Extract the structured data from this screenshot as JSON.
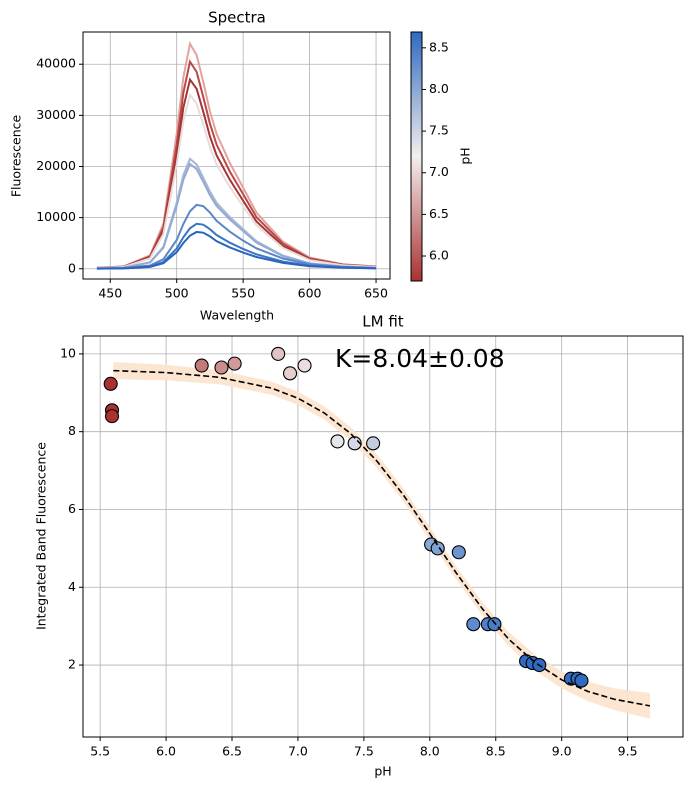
{
  "chart_data": [
    {
      "type": "line",
      "title": "Spectra",
      "xlabel": "Wavelength",
      "ylabel": "Fluorescence",
      "x": [
        440,
        460,
        480,
        490,
        500,
        505,
        510,
        515,
        520,
        525,
        530,
        540,
        550,
        560,
        580,
        600,
        625,
        650
      ],
      "series": [
        {
          "color": "#e3a39c",
          "values": [
            220,
            440,
            2640,
            8800,
            26400,
            37400,
            44000,
            41800,
            36520,
            30800,
            26400,
            20680,
            15840,
            11000,
            5280,
            2200,
            880,
            440
          ]
        },
        {
          "color": "#b94848",
          "values": [
            200,
            410,
            2430,
            8100,
            24300,
            34400,
            40500,
            38500,
            33600,
            28400,
            24300,
            19000,
            14600,
            10100,
            4900,
            2000,
            810,
            410
          ]
        },
        {
          "color": "#a83232",
          "values": [
            190,
            370,
            2220,
            7400,
            22200,
            31500,
            37000,
            35200,
            30700,
            25900,
            22200,
            17400,
            13300,
            9250,
            4440,
            1850,
            740,
            370
          ]
        },
        {
          "color": "#e6dcdc",
          "values": [
            170,
            340,
            2040,
            6800,
            20400,
            28900,
            34000,
            32300,
            28200,
            23800,
            20400,
            16000,
            12200,
            8500,
            4080,
            1700,
            680,
            340
          ]
        },
        {
          "color": "#a6b6d3",
          "values": [
            110,
            220,
            1290,
            4300,
            12900,
            18300,
            21500,
            20400,
            17800,
            15100,
            12900,
            10100,
            7740,
            5380,
            2580,
            1080,
            430,
            220
          ]
        },
        {
          "color": "#93acd6",
          "values": [
            100,
            210,
            1230,
            4100,
            12300,
            17400,
            20500,
            19500,
            17000,
            14400,
            12300,
            9640,
            7380,
            5130,
            2460,
            1030,
            410,
            210
          ]
        },
        {
          "color": "#5a87c6",
          "values": [
            60,
            130,
            630,
            1880,
            5630,
            8750,
            11250,
            12500,
            12250,
            11000,
            9380,
            7250,
            5500,
            4000,
            2000,
            880,
            380,
            130
          ]
        },
        {
          "color": "#3a74c4",
          "values": [
            40,
            90,
            440,
            1320,
            3960,
            6160,
            7920,
            8800,
            8620,
            7740,
            6600,
            5100,
            3870,
            2820,
            1410,
            620,
            260,
            90
          ]
        },
        {
          "color": "#2a64bf",
          "values": [
            40,
            70,
            360,
            1080,
            3240,
            5040,
            6480,
            7200,
            7060,
            6340,
            5400,
            4180,
            3170,
            2300,
            1150,
            500,
            220,
            70
          ]
        }
      ],
      "xlim": [
        429.5,
        660.5
      ],
      "xticks": [
        450,
        500,
        550,
        600,
        650
      ],
      "ylim": [
        -2000,
        46300
      ],
      "yticks": [
        0,
        10000,
        20000,
        30000,
        40000
      ],
      "grid": true,
      "colorbar": {
        "label": "pH",
        "lim": [
          5.7,
          8.69
        ],
        "colors": [
          "#a83232",
          "#f4eeee",
          "#2f6bc0"
        ],
        "ticks": [
          {
            "value": 6,
            "label": "6.0"
          },
          {
            "value": 6.5,
            "label": "6.5"
          },
          {
            "value": 7,
            "label": "7.0"
          },
          {
            "value": 7.5,
            "label": "7.5"
          },
          {
            "value": 8,
            "label": "8.0"
          },
          {
            "value": 8.5,
            "label": "8.5"
          }
        ]
      }
    },
    {
      "type": "scatter",
      "title": "LM fit",
      "xlabel": "pH",
      "ylabel": "Integrated Band Fluorescence",
      "annotation": "K=8.04±0.08",
      "x": [
        5.58,
        5.59,
        5.59,
        6.27,
        6.42,
        6.52,
        6.85,
        6.94,
        7.05,
        7.3,
        7.43,
        7.57,
        8.01,
        8.06,
        8.22,
        8.33,
        8.44,
        8.49,
        8.73,
        8.78,
        8.83,
        9.07,
        9.12,
        9.15
      ],
      "values": [
        9.23,
        8.55,
        8.4,
        9.7,
        9.65,
        9.75,
        10.0,
        9.5,
        9.7,
        7.75,
        7.7,
        7.7,
        5.1,
        5.0,
        4.9,
        3.05,
        3.05,
        3.05,
        2.1,
        2.05,
        2.0,
        1.65,
        1.65,
        1.6
      ],
      "fit": {
        "color": "#000000",
        "band_color": "#fde3cc",
        "x": [
          5.6,
          6.0,
          6.4,
          6.8,
          7.0,
          7.2,
          7.4,
          7.6,
          7.8,
          8.0,
          8.2,
          8.4,
          8.6,
          8.8,
          9.0,
          9.2,
          9.4,
          9.67
        ],
        "values": [
          9.57,
          9.52,
          9.4,
          9.12,
          8.86,
          8.48,
          7.95,
          7.24,
          6.37,
          5.38,
          4.37,
          3.44,
          2.66,
          2.06,
          1.62,
          1.32,
          1.12,
          0.95
        ],
        "lower": [
          9.35,
          9.32,
          9.22,
          8.95,
          8.69,
          8.31,
          7.78,
          7.07,
          6.2,
          5.21,
          4.2,
          3.27,
          2.48,
          1.86,
          1.4,
          1.07,
          0.84,
          0.62
        ],
        "upper": [
          9.79,
          9.72,
          9.58,
          9.29,
          9.03,
          8.65,
          8.12,
          7.41,
          6.54,
          5.55,
          4.54,
          3.61,
          2.84,
          2.26,
          1.84,
          1.57,
          1.4,
          1.28
        ]
      },
      "xlim": [
        5.37,
        9.92
      ],
      "xticks": [
        5.5,
        {
          "value": 6,
          "label": "6.0"
        },
        6.5,
        {
          "value": 7,
          "label": "7.0"
        },
        7.5,
        {
          "value": 8,
          "label": "8.0"
        },
        8.5,
        {
          "value": 9,
          "label": "9.0"
        },
        9.5
      ],
      "ylim": [
        0.15,
        10.46
      ],
      "yticks": [
        2,
        4,
        6,
        8,
        10
      ],
      "grid": true
    }
  ]
}
